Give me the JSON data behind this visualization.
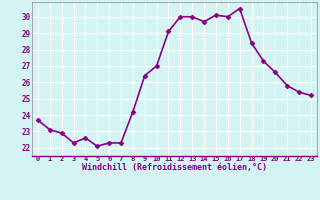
{
  "x": [
    0,
    1,
    2,
    3,
    4,
    5,
    6,
    7,
    8,
    9,
    10,
    11,
    12,
    13,
    14,
    15,
    16,
    17,
    18,
    19,
    20,
    21,
    22,
    23
  ],
  "y": [
    23.7,
    23.1,
    22.9,
    22.3,
    22.6,
    22.1,
    22.3,
    22.3,
    24.2,
    26.4,
    27.0,
    29.1,
    30.0,
    30.0,
    29.7,
    30.1,
    30.0,
    30.5,
    28.4,
    27.3,
    26.6,
    25.8,
    25.4,
    25.2
  ],
  "line_color": "#880088",
  "marker": "D",
  "marker_size": 2.5,
  "xlim": [
    -0.5,
    23.5
  ],
  "ylim": [
    21.5,
    30.9
  ],
  "yticks": [
    22,
    23,
    24,
    25,
    26,
    27,
    28,
    29,
    30
  ],
  "xticks": [
    0,
    1,
    2,
    3,
    4,
    5,
    6,
    7,
    8,
    9,
    10,
    11,
    12,
    13,
    14,
    15,
    16,
    17,
    18,
    19,
    20,
    21,
    22,
    23
  ],
  "xlabel": "Windchill (Refroidissement éolien,°C)",
  "background_color": "#d4f4f4",
  "grid_color": "#ffffff",
  "tick_label_color": "#880088",
  "label_color": "#880088",
  "line_width": 1.2,
  "spine_color": "#888888"
}
